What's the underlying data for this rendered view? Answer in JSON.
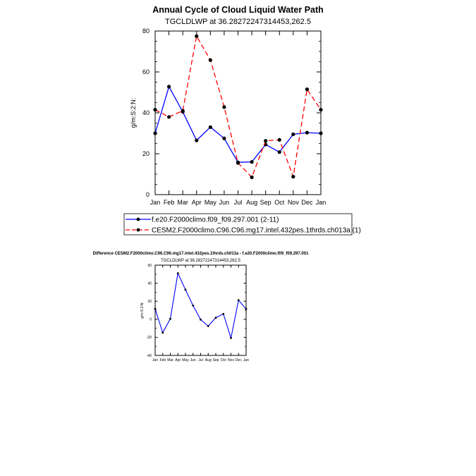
{
  "chart_data": [
    {
      "type": "line",
      "title": "Annual Cycle of Cloud Liquid Water Path",
      "subtitle": "TGCLDLWP at 36.28272247314453,262.5",
      "xlabel": "",
      "ylabel": "g/m:S:2:N:",
      "categories": [
        "Jan",
        "Feb",
        "Mar",
        "Apr",
        "May",
        "Jun",
        "Jul",
        "Aug",
        "Sep",
        "Oct",
        "Nov",
        "Dec",
        "Jan"
      ],
      "ylim": [
        0,
        80
      ],
      "yticks": [
        0,
        20,
        40,
        60,
        80
      ],
      "series": [
        {
          "name": "f.e20.F2000climo.f09_f09.297.001 (2-11)",
          "color": "#0000ff",
          "dash": "solid",
          "values": [
            30.0,
            52.8,
            40.5,
            26.5,
            33.0,
            27.5,
            15.8,
            16.0,
            24.5,
            20.8,
            29.5,
            30.3,
            30.0
          ]
        },
        {
          "name": "CESM2.F2000climo.C96.C96.mg17.intel.432pes.1thrds.ch013a (1)",
          "color": "#ff0000",
          "dash": "dashed",
          "values": [
            41.5,
            38.0,
            41.0,
            77.5,
            65.8,
            42.8,
            15.5,
            8.5,
            26.3,
            26.8,
            8.8,
            51.5,
            41.5
          ]
        }
      ],
      "legend_position": "below"
    },
    {
      "type": "line",
      "title": "Difference CESM2.F2000climo.C96.C96.mg17.intel.432pes.1thrds.ch013a - f.e20.F2000climo.f09_f09.297.001",
      "subtitle": "TGCLDLWP at 36.28272247314453,262.5",
      "xlabel": "",
      "ylabel": "g/m:S:2:N:",
      "categories": [
        "Jan",
        "Feb",
        "Mar",
        "Apr",
        "May",
        "Jun",
        "Jul",
        "Aug",
        "Sep",
        "Oct",
        "Nov",
        "Dec",
        "Jan"
      ],
      "ylim": [
        -40,
        60
      ],
      "yticks": [
        -40,
        -20,
        0,
        20,
        40,
        60
      ],
      "series": [
        {
          "name": "Difference",
          "color": "#0000ff",
          "dash": "solid",
          "values": [
            11.5,
            -14.8,
            0.5,
            51.0,
            32.8,
            15.3,
            -0.3,
            -7.5,
            1.8,
            6.0,
            -20.7,
            21.2,
            11.5
          ]
        }
      ]
    }
  ]
}
